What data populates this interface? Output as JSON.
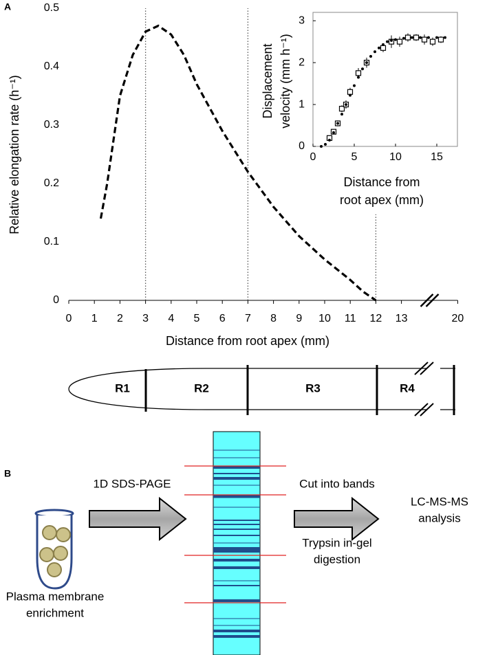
{
  "panel_a_label": "A",
  "chart_data": [
    {
      "type": "line",
      "x_label": "Distance from root apex (mm)",
      "y_label": "Relative elongation rate (h⁻¹)",
      "xlim": [
        0,
        20
      ],
      "ylim": [
        0,
        0.5
      ],
      "xticks": [
        0,
        1,
        2,
        3,
        4,
        5,
        6,
        7,
        8,
        9,
        10,
        11,
        12,
        13,
        20
      ],
      "yticks": [
        0,
        0.1,
        0.2,
        0.3,
        0.4,
        0.5
      ],
      "axis_break": true,
      "reference_lines": [
        3,
        7,
        12
      ],
      "line_style": "dashed",
      "color": "#000000",
      "x": [
        1.25,
        1.5,
        2,
        2.5,
        3,
        3.5,
        4,
        4.5,
        5,
        5.5,
        6,
        6.5,
        7,
        7.5,
        8,
        9,
        10,
        11,
        11.5,
        12
      ],
      "values": [
        0.14,
        0.2,
        0.35,
        0.42,
        0.46,
        0.47,
        0.455,
        0.42,
        0.37,
        0.33,
        0.29,
        0.255,
        0.22,
        0.19,
        0.16,
        0.11,
        0.07,
        0.035,
        0.015,
        0
      ]
    },
    {
      "type": "scatter",
      "inset": true,
      "x_label": [
        "Distance from",
        "root apex (mm)"
      ],
      "y_label": [
        "Displacement",
        "velocity (mm h⁻¹)"
      ],
      "xlim": [
        0,
        17.5
      ],
      "ylim": [
        0,
        3.2
      ],
      "xticks": [
        0,
        5,
        10,
        15
      ],
      "yticks": [
        0,
        1,
        2,
        3
      ],
      "series": [
        {
          "color": "#000000",
          "marker": "square",
          "x": [
            2,
            2.5,
            3,
            3.5,
            4,
            4.5,
            5.5,
            6.5,
            8.5,
            9.5,
            10.5,
            11.5,
            12.5,
            13.5,
            14.5,
            15.5
          ],
          "values": [
            0.2,
            0.35,
            0.55,
            0.9,
            1.0,
            1.3,
            1.75,
            2.0,
            2.35,
            2.5,
            2.5,
            2.6,
            2.6,
            2.55,
            2.5,
            2.55
          ],
          "errors": [
            0.05,
            0.05,
            0.07,
            0.08,
            0.1,
            0.1,
            0.12,
            0.12,
            0.1,
            0.15,
            0.12,
            0.1,
            0.08,
            0.12,
            0.1,
            0.08
          ]
        },
        {
          "color": "#000000",
          "marker": "dot",
          "x": [
            1,
            1.5,
            2,
            2.5,
            3,
            3.5,
            4,
            4.5,
            5,
            5.5,
            6,
            6.5,
            7,
            7.5,
            8,
            8.5,
            9,
            9.5,
            10,
            11,
            12,
            13,
            14,
            15,
            16
          ],
          "values": [
            0,
            0.05,
            0.15,
            0.33,
            0.55,
            0.77,
            1.0,
            1.22,
            1.45,
            1.65,
            1.85,
            2.0,
            2.15,
            2.26,
            2.35,
            2.43,
            2.5,
            2.53,
            2.55,
            2.58,
            2.6,
            2.6,
            2.6,
            2.6,
            2.6
          ]
        }
      ]
    }
  ],
  "root_diagram": {
    "regions": [
      "R1",
      "R2",
      "R3",
      "R4"
    ]
  },
  "panel_b": {
    "label": "B",
    "sample": [
      "Plasma membrane",
      "enrichment"
    ],
    "step_1": "1D SDS-PAGE",
    "step_2_top": "Cut into bands",
    "step_2_bottom": [
      "Trypsin in-gel",
      "digestion"
    ],
    "output": [
      "LC-MS-MS",
      "analysis"
    ]
  }
}
